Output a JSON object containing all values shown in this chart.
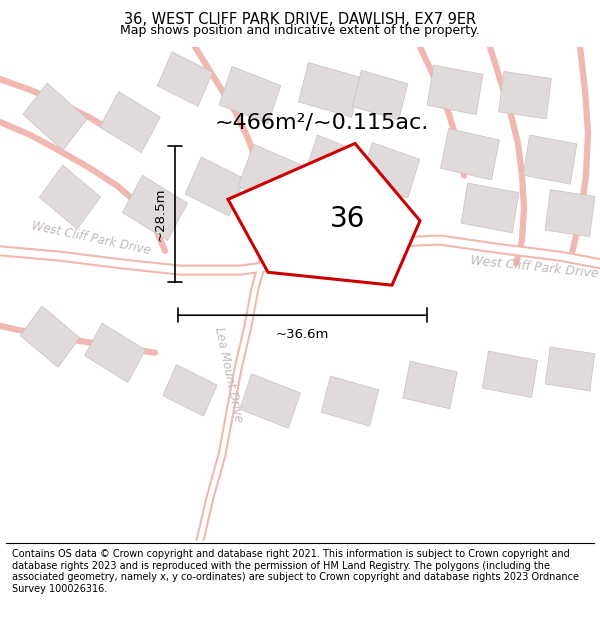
{
  "title": "36, WEST CLIFF PARK DRIVE, DAWLISH, EX7 9ER",
  "subtitle": "Map shows position and indicative extent of the property.",
  "area_text": "~466m²/~0.115ac.",
  "width_label": "~36.6m",
  "height_label": "~28.5m",
  "number_label": "36",
  "footer": "Contains OS data © Crown copyright and database right 2021. This information is subject to Crown copyright and database rights 2023 and is reproduced with the permission of HM Land Registry. The polygons (including the associated geometry, namely x, y co-ordinates) are subject to Crown copyright and database rights 2023 Ordnance Survey 100026316.",
  "bg_color": "#ffffff",
  "map_bg": "#f5f0ee",
  "road_color": "#f0b8b0",
  "road_fill": "#ffffff",
  "building_fill": "#e0dada",
  "building_edge": "#c8c0c0",
  "highlight_color": "#cc0000",
  "highlight_lw": 2.2,
  "title_fontsize": 10.5,
  "subtitle_fontsize": 9.0,
  "area_fontsize": 16,
  "label_fontsize": 9.5,
  "number_fontsize": 20,
  "footer_fontsize": 7.0,
  "road_label_color": "#c0b8b8",
  "road_label_size": 9.0
}
